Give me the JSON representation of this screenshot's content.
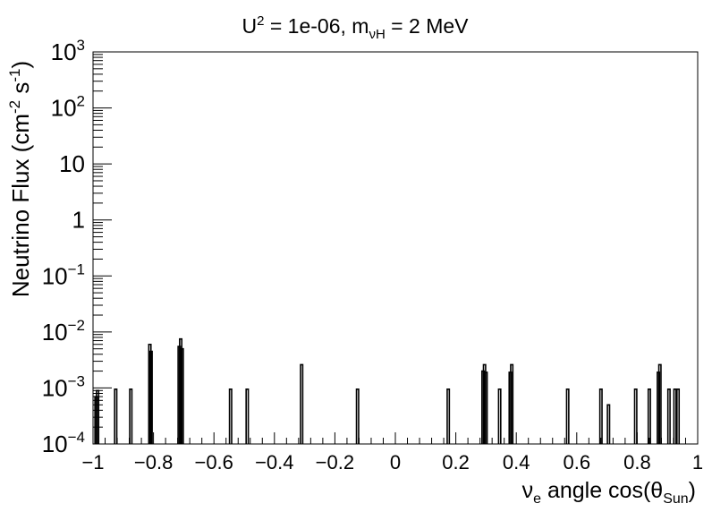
{
  "chart_data": {
    "type": "histogram",
    "title": {
      "u_symbol": "U",
      "u_power": "2",
      "u_text": " = 1e-06, m",
      "mass_subscript": "νH",
      "mass_text": " = 2 MeV"
    },
    "xlabel": {
      "nu": "ν",
      "nu_subscript": "e",
      "text": " angle cos(θ",
      "theta_subscript": "Sun",
      "close": ")"
    },
    "ylabel": {
      "text": "Neutrino Flux (cm",
      "power1": "-2",
      "mid": " s",
      "power2": "-1",
      "close": ")"
    },
    "xlim": [
      -1,
      1
    ],
    "ylim": [
      0.0001,
      1000
    ],
    "yscale": "log",
    "grid": false,
    "legend": "none",
    "x_ticks": [
      "−1",
      "−0.8",
      "−0.6",
      "−0.4",
      "−0.2",
      "0",
      "0.2",
      "0.4",
      "0.6",
      "0.8",
      "1"
    ],
    "y_ticks": [
      {
        "base": "10",
        "power": "−4"
      },
      {
        "base": "10",
        "power": "−3"
      },
      {
        "base": "10",
        "power": "−2"
      },
      {
        "base": "10",
        "power": "−1"
      },
      {
        "base": "1",
        "power": ""
      },
      {
        "base": "10",
        "power": ""
      },
      {
        "base": "10",
        "power": "2"
      },
      {
        "base": "10",
        "power": "3"
      }
    ],
    "bin_width": 0.004,
    "line_color": "#000000",
    "spikes": [
      {
        "x": -0.99,
        "y": 0.0007
      },
      {
        "x": -0.985,
        "y": 0.0009
      },
      {
        "x": -0.925,
        "y": 0.00095
      },
      {
        "x": -0.875,
        "y": 0.00095
      },
      {
        "x": -0.812,
        "y": 0.006
      },
      {
        "x": -0.808,
        "y": 0.0045
      },
      {
        "x": -0.715,
        "y": 0.0055
      },
      {
        "x": -0.71,
        "y": 0.0075
      },
      {
        "x": -0.705,
        "y": 0.005
      },
      {
        "x": -0.545,
        "y": 0.00095
      },
      {
        "x": -0.49,
        "y": 0.00095
      },
      {
        "x": -0.31,
        "y": 0.0026
      },
      {
        "x": -0.125,
        "y": 0.00095
      },
      {
        "x": 0.175,
        "y": 0.00095
      },
      {
        "x": 0.29,
        "y": 0.002
      },
      {
        "x": 0.295,
        "y": 0.0026
      },
      {
        "x": 0.3,
        "y": 0.0019
      },
      {
        "x": 0.345,
        "y": 0.00095
      },
      {
        "x": 0.38,
        "y": 0.0019
      },
      {
        "x": 0.385,
        "y": 0.0026
      },
      {
        "x": 0.57,
        "y": 0.00095
      },
      {
        "x": 0.68,
        "y": 0.00095
      },
      {
        "x": 0.705,
        "y": 0.0005
      },
      {
        "x": 0.795,
        "y": 0.00095
      },
      {
        "x": 0.84,
        "y": 0.00095
      },
      {
        "x": 0.87,
        "y": 0.0019
      },
      {
        "x": 0.875,
        "y": 0.0026
      },
      {
        "x": 0.905,
        "y": 0.00095
      },
      {
        "x": 0.925,
        "y": 0.00095
      },
      {
        "x": 0.935,
        "y": 0.00095
      }
    ]
  }
}
